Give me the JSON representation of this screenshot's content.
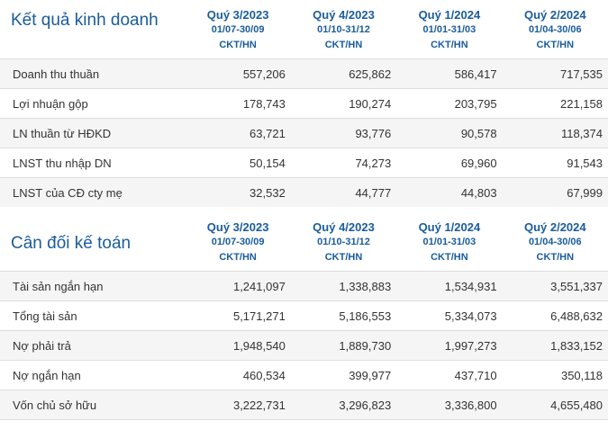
{
  "sections": [
    {
      "title": "Kết quả kinh doanh",
      "columns": [
        {
          "quarter": "Quý 3/2023",
          "range": "01/07-30/09",
          "unit": "CKT/HN"
        },
        {
          "quarter": "Quý 4/2023",
          "range": "01/10-31/12",
          "unit": "CKT/HN"
        },
        {
          "quarter": "Quý 1/2024",
          "range": "01/01-31/03",
          "unit": "CKT/HN"
        },
        {
          "quarter": "Quý 2/2024",
          "range": "01/04-30/06",
          "unit": "CKT/HN"
        }
      ],
      "rows": [
        {
          "label": "Doanh thu thuần",
          "values": [
            "557,206",
            "625,862",
            "586,417",
            "717,535"
          ]
        },
        {
          "label": "Lợi nhuận gộp",
          "values": [
            "178,743",
            "190,274",
            "203,795",
            "221,158"
          ]
        },
        {
          "label": "LN thuần từ HĐKD",
          "values": [
            "63,721",
            "93,776",
            "90,578",
            "118,374"
          ]
        },
        {
          "label": "LNST thu nhập DN",
          "values": [
            "50,154",
            "74,273",
            "69,960",
            "91,543"
          ]
        },
        {
          "label": "LNST của CĐ cty mẹ",
          "values": [
            "32,532",
            "44,777",
            "44,803",
            "67,999"
          ]
        }
      ]
    },
    {
      "title": "Cân đối kế toán",
      "columns": [
        {
          "quarter": "Quý 3/2023",
          "range": "01/07-30/09",
          "unit": "CKT/HN"
        },
        {
          "quarter": "Quý 4/2023",
          "range": "01/10-31/12",
          "unit": "CKT/HN"
        },
        {
          "quarter": "Quý 1/2024",
          "range": "01/01-31/03",
          "unit": "CKT/HN"
        },
        {
          "quarter": "Quý 2/2024",
          "range": "01/04-30/06",
          "unit": "CKT/HN"
        }
      ],
      "rows": [
        {
          "label": "Tài sản ngắn hạn",
          "values": [
            "1,241,097",
            "1,338,883",
            "1,534,931",
            "3,551,337"
          ]
        },
        {
          "label": "Tổng tài sản",
          "values": [
            "5,171,271",
            "5,186,553",
            "5,334,073",
            "6,488,632"
          ]
        },
        {
          "label": "Nợ phải trả",
          "values": [
            "1,948,540",
            "1,889,730",
            "1,997,273",
            "1,833,152"
          ]
        },
        {
          "label": "Nợ ngắn hạn",
          "values": [
            "460,534",
            "399,977",
            "437,710",
            "350,118"
          ]
        },
        {
          "label": "Vốn chủ sở hữu",
          "values": [
            "3,222,731",
            "3,296,823",
            "3,336,800",
            "4,655,480"
          ]
        }
      ]
    }
  ],
  "colors": {
    "title": "#1a5c9c",
    "row_alt": "#f5f5f5",
    "border": "#dddddd",
    "text": "#333333"
  }
}
